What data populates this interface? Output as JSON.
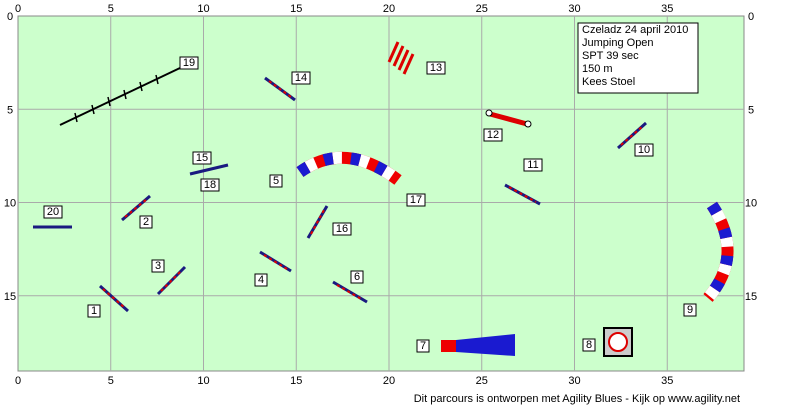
{
  "axis_ticks": [
    0,
    5,
    10,
    15,
    20,
    25,
    30,
    35
  ],
  "side_ticks": [
    0,
    5,
    10,
    15
  ],
  "info": [
    "Czeladz 24 april 2010",
    "Jumping Open",
    "SPT 39 sec",
    "150 m",
    "Kees Stoel"
  ],
  "obstacles": [
    "1",
    "2",
    "3",
    "4",
    "5",
    "6",
    "7",
    "8",
    "9",
    "10",
    "11",
    "12",
    "13",
    "14",
    "15",
    "16",
    "17",
    "18",
    "19",
    "20"
  ],
  "footer": "Dit parcours is ontworpen met Agility Blues - Kijk op www.agility.net"
}
